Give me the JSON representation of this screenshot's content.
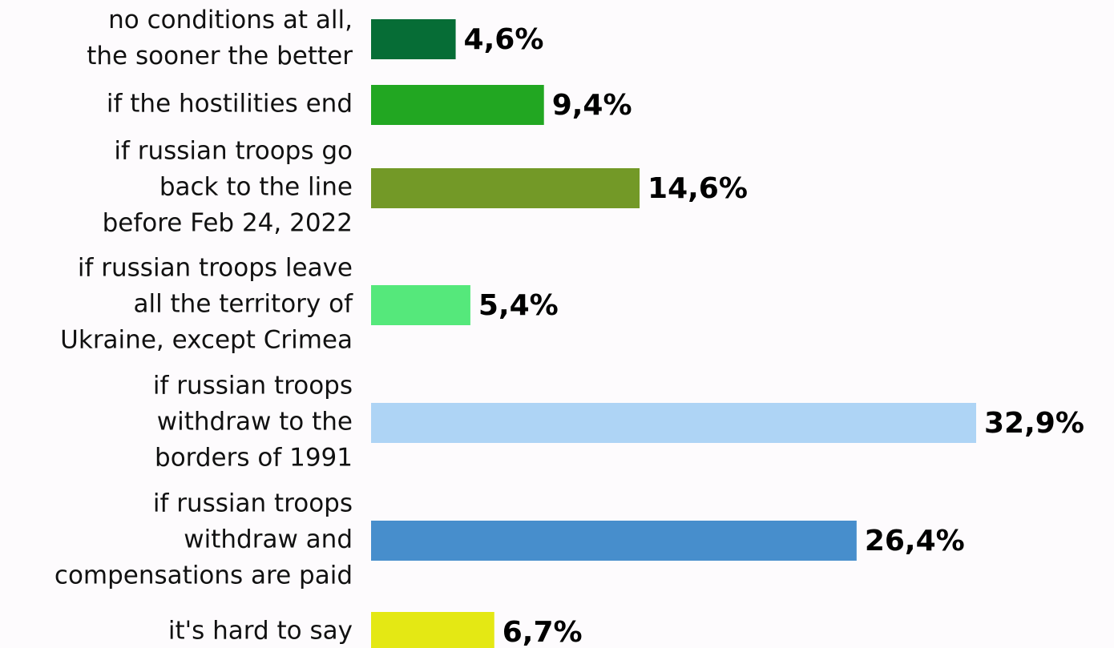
{
  "chart_data": {
    "type": "hbar",
    "categories": [
      [
        "no conditions at all,",
        "the sooner the better"
      ],
      [
        "if the hostilities end"
      ],
      [
        "if russian troops go",
        "back to the line",
        "before Feb 24, 2022"
      ],
      [
        "if russian troops leave",
        "all the territory of",
        "Ukraine, except Crimea"
      ],
      [
        "if russian troops",
        "withdraw to the",
        "borders of 1991"
      ],
      [
        "if russian troops",
        "withdraw and",
        "compensations are paid"
      ],
      [
        "it's hard to say"
      ]
    ],
    "values": [
      4.6,
      9.4,
      14.6,
      5.4,
      32.9,
      26.4,
      6.7
    ],
    "value_labels": [
      "4,6%",
      "9,4%",
      "14,6%",
      "5,4%",
      "32,9%",
      "26,4%",
      "6,7%"
    ],
    "colors": [
      "#066d36",
      "#22a722",
      "#739927",
      "#55e87b",
      "#aed4f5",
      "#478ecc",
      "#e4e814"
    ]
  }
}
